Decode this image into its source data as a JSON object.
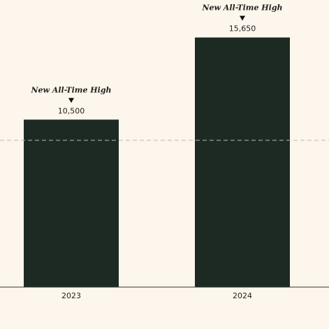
{
  "chart_data": {
    "type": "bar",
    "categories": [
      "2023",
      "2024"
    ],
    "values": [
      10500,
      15650
    ],
    "value_labels": [
      "10,500",
      "15,650"
    ],
    "annotations": [
      "New All-Time High",
      "New All-Time High"
    ],
    "color": "#1c2a23",
    "reference_line": 9200,
    "ylim": [
      0,
      18000
    ]
  }
}
